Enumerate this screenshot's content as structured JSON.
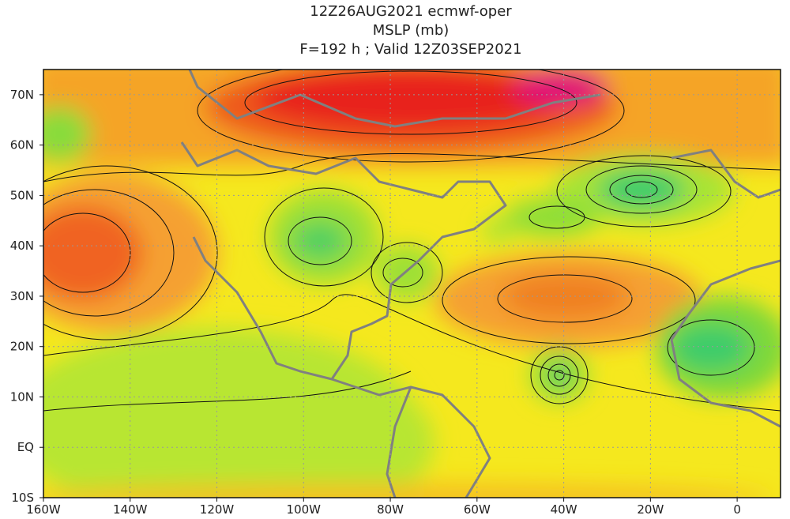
{
  "title_lines": [
    "12Z26AUG2021 ecmwf-oper",
    "MSLP (mb)",
    "F=192 h ; Valid 12Z03SEP2021"
  ],
  "map": {
    "xlim": [
      -160,
      10
    ],
    "ylim": [
      -10,
      75
    ],
    "lon_ticks": [
      {
        "value": -160,
        "label": "160W"
      },
      {
        "value": -140,
        "label": "140W"
      },
      {
        "value": -120,
        "label": "120W"
      },
      {
        "value": -100,
        "label": "100W"
      },
      {
        "value": -80,
        "label": "80W"
      },
      {
        "value": -60,
        "label": "60W"
      },
      {
        "value": -40,
        "label": "40W"
      },
      {
        "value": -20,
        "label": "20W"
      },
      0
    ],
    "lat_ticks": [
      {
        "value": -10,
        "label": "10S"
      },
      {
        "value": 0,
        "label": "EQ"
      },
      {
        "value": 10,
        "label": "10N"
      },
      {
        "value": 20,
        "label": "20N"
      },
      {
        "value": 30,
        "label": "30N"
      },
      {
        "value": 40,
        "label": "40N"
      },
      {
        "value": 50,
        "label": "50N"
      },
      {
        "value": 60,
        "label": "60N"
      },
      {
        "value": 70,
        "label": "70N"
      }
    ]
  }
}
